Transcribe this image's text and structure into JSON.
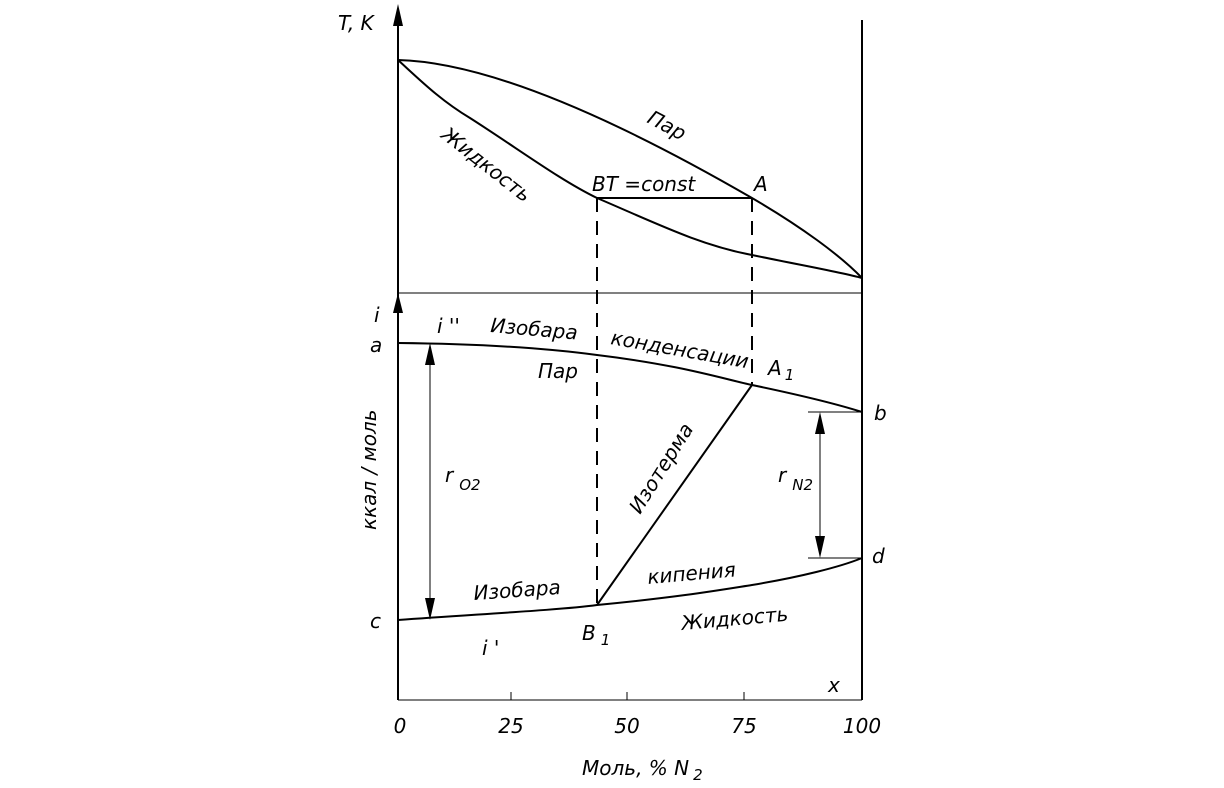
{
  "top_panel": {
    "axis_label": "T, K",
    "vapor_label": "Пар",
    "liquid_label": "Жидкость",
    "point_b": "B",
    "isotherm_label": "T =const",
    "point_a": "A"
  },
  "bottom_panel": {
    "axis_label": "i",
    "vapor_enthalpy": "i ''",
    "isobar_top_1": "Изобара",
    "isobar_top_2": "конденсации",
    "point_a": "a",
    "vapor_label": "Пар",
    "point_a1": {
      "text": "A",
      "sub": "1"
    },
    "point_b": "b",
    "y_unit": "ккал / моль",
    "heat_o2": {
      "text": "r",
      "sub": "O2"
    },
    "isotherm": "Изотерма",
    "heat_n2": {
      "text": "r",
      "sub": "N2"
    },
    "point_d": "d",
    "isobar_bottom_2": "кипения",
    "isobar_bottom_1": "Изобара",
    "point_c": "c",
    "liquid_label": "Жидкость",
    "point_b1": {
      "text": "B",
      "sub": "1"
    },
    "liquid_enthalpy": "i '",
    "x_label": "x"
  },
  "x_axis": {
    "ticks": [
      "0",
      "25",
      "50",
      "75",
      "100"
    ],
    "title": {
      "text": "Моль, % N",
      "sub": "2"
    }
  }
}
